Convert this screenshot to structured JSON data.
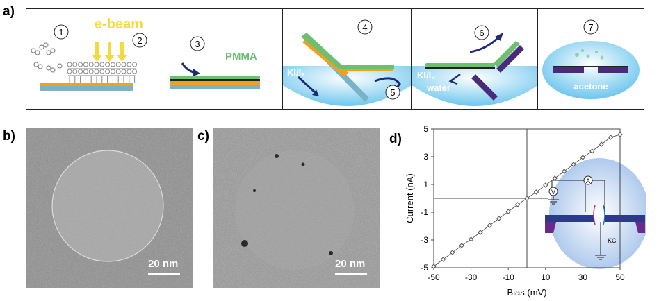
{
  "panels": {
    "a": "a)",
    "b": "b)",
    "c": "c)",
    "d": "d)"
  },
  "fabrication": {
    "step_numbers": [
      "1",
      "2",
      "3",
      "4",
      "5",
      "6",
      "7"
    ],
    "ebeam_label": "e-beam",
    "pmma_label": "PMMA",
    "ki_label_step4": "KI/I₂",
    "ki_label_step6": "KI/I₂",
    "water_label": "water",
    "acetone_label": "acetone",
    "colors": {
      "beam_yellow": "#f3dc3a",
      "pmma_green": "#6dbf73",
      "metal_orange": "#f2a01e",
      "substrate_blue": "#7ab3c8",
      "membrane_purple": "#4a2a7a",
      "arrow_navy": "#1e2b7a",
      "liquid_blue": "#6ec6ee"
    }
  },
  "tem": {
    "scale_bar_b": "20 nm",
    "scale_bar_c": "20 nm"
  },
  "chart_data": {
    "type": "line",
    "xlabel": "Bias (mV)",
    "ylabel": "Current (nA)",
    "xlim": [
      -50,
      50
    ],
    "ylim": [
      -5,
      5
    ],
    "xticks": [
      "-50",
      "-30",
      "-10",
      "10",
      "30",
      "50"
    ],
    "yticks": [
      "5",
      "3",
      "1",
      "-1",
      "-3",
      "-5"
    ],
    "grid": false,
    "series": [
      {
        "x": [
          -50,
          -45,
          -40,
          -35,
          -30,
          -25,
          -20,
          -15,
          -10,
          -5,
          0,
          5,
          10,
          15,
          20,
          25,
          30,
          35,
          40,
          45,
          50
        ],
        "values": [
          -4.9,
          -4.4,
          -3.9,
          -3.4,
          -2.95,
          -2.45,
          -1.95,
          -1.45,
          -0.95,
          -0.45,
          0.0,
          0.45,
          0.95,
          1.45,
          1.95,
          2.45,
          2.95,
          3.4,
          3.9,
          4.4,
          4.6
        ]
      }
    ],
    "inset": {
      "voltmeter": "V",
      "ammeter": "A",
      "electrolyte": "KCl"
    }
  }
}
